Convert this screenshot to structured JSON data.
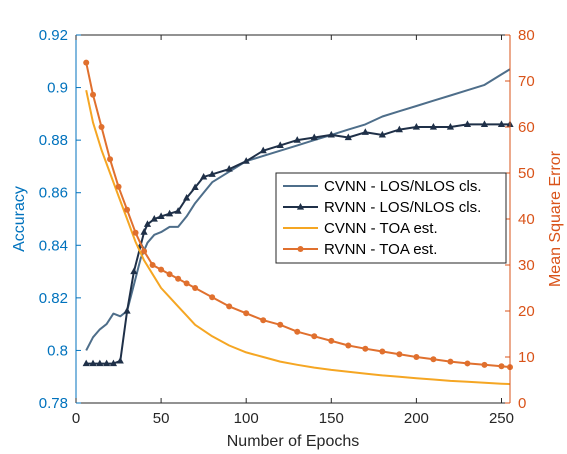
{
  "chart_data": {
    "type": "line",
    "xlabel": "Number of Epochs",
    "ylabel_left": "Accuracy",
    "ylabel_right": "Mean Square Error",
    "xlim": [
      0,
      255
    ],
    "ylim_left": [
      0.78,
      0.92
    ],
    "ylim_right": [
      0,
      80
    ],
    "xticks": [
      "0",
      "50",
      "100",
      "150",
      "200",
      "250"
    ],
    "yticks_left": [
      "0.78",
      "0.8",
      "0.82",
      "0.84",
      "0.86",
      "0.88",
      "0.9",
      "0.92"
    ],
    "yticks_right": [
      "0",
      "10",
      "20",
      "30",
      "40",
      "50",
      "60",
      "70",
      "80"
    ],
    "grid": false,
    "legend_position": "center-right",
    "colors": {
      "left_axis": "#0072BD",
      "right_axis": "#D95319",
      "cvnn_cls": "#4E6E8A",
      "rvnn_cls": "#1F3048",
      "cvnn_toa": "#F5A623",
      "rvnn_toa": "#E0702E"
    },
    "series": [
      {
        "name": "CVNN - LOS/NLOS cls.",
        "axis": "left",
        "marker": "none",
        "x": [
          6,
          10,
          14,
          18,
          22,
          26,
          30,
          34,
          38,
          42,
          46,
          50,
          55,
          60,
          65,
          70,
          75,
          80,
          90,
          100,
          110,
          120,
          130,
          140,
          150,
          160,
          170,
          180,
          190,
          200,
          210,
          220,
          230,
          240,
          250,
          255
        ],
        "y": [
          0.8,
          0.805,
          0.808,
          0.81,
          0.814,
          0.813,
          0.815,
          0.825,
          0.835,
          0.841,
          0.844,
          0.845,
          0.847,
          0.847,
          0.851,
          0.856,
          0.86,
          0.864,
          0.868,
          0.872,
          0.874,
          0.876,
          0.878,
          0.88,
          0.882,
          0.884,
          0.886,
          0.889,
          0.891,
          0.893,
          0.895,
          0.897,
          0.899,
          0.901,
          0.905,
          0.907
        ]
      },
      {
        "name": "RVNN - LOS/NLOS cls.",
        "axis": "left",
        "marker": "triangle",
        "x": [
          6,
          10,
          14,
          18,
          22,
          26,
          30,
          34,
          38,
          40,
          42,
          46,
          50,
          55,
          60,
          65,
          70,
          75,
          80,
          90,
          100,
          110,
          120,
          130,
          140,
          150,
          160,
          170,
          180,
          190,
          200,
          210,
          220,
          230,
          240,
          250,
          255
        ],
        "y": [
          0.795,
          0.795,
          0.795,
          0.795,
          0.795,
          0.796,
          0.815,
          0.83,
          0.84,
          0.845,
          0.848,
          0.85,
          0.851,
          0.852,
          0.853,
          0.858,
          0.862,
          0.866,
          0.867,
          0.869,
          0.872,
          0.876,
          0.878,
          0.88,
          0.881,
          0.882,
          0.881,
          0.883,
          0.882,
          0.884,
          0.885,
          0.885,
          0.885,
          0.886,
          0.886,
          0.886,
          0.886
        ]
      },
      {
        "name": "CVNN - TOA est.",
        "axis": "right",
        "marker": "none",
        "x": [
          6,
          10,
          15,
          20,
          25,
          30,
          35,
          40,
          45,
          50,
          55,
          60,
          65,
          70,
          80,
          90,
          100,
          110,
          120,
          130,
          140,
          150,
          160,
          170,
          180,
          190,
          200,
          210,
          220,
          230,
          240,
          250,
          255
        ],
        "y": [
          68,
          61,
          55,
          50,
          45,
          40,
          35,
          31,
          28,
          25,
          23,
          21,
          19,
          17,
          14.5,
          12.5,
          11,
          10,
          9,
          8.3,
          7.7,
          7.2,
          6.8,
          6.4,
          6.0,
          5.7,
          5.4,
          5.1,
          4.8,
          4.6,
          4.4,
          4.2,
          4.1
        ]
      },
      {
        "name": "RVNN - TOA est.",
        "axis": "right",
        "marker": "circle",
        "x": [
          6,
          10,
          15,
          20,
          25,
          30,
          35,
          40,
          45,
          50,
          55,
          60,
          65,
          70,
          80,
          90,
          100,
          110,
          120,
          130,
          140,
          150,
          160,
          170,
          180,
          190,
          200,
          210,
          220,
          230,
          240,
          250,
          255
        ],
        "y": [
          74,
          67,
          60,
          53,
          47,
          42,
          37,
          33,
          30,
          29,
          28,
          27,
          26,
          25,
          23,
          21,
          19.5,
          18,
          17,
          15.5,
          14.5,
          13.5,
          12.5,
          11.8,
          11.2,
          10.6,
          10.0,
          9.5,
          9.0,
          8.6,
          8.3,
          8.0,
          7.8
        ]
      }
    ]
  }
}
